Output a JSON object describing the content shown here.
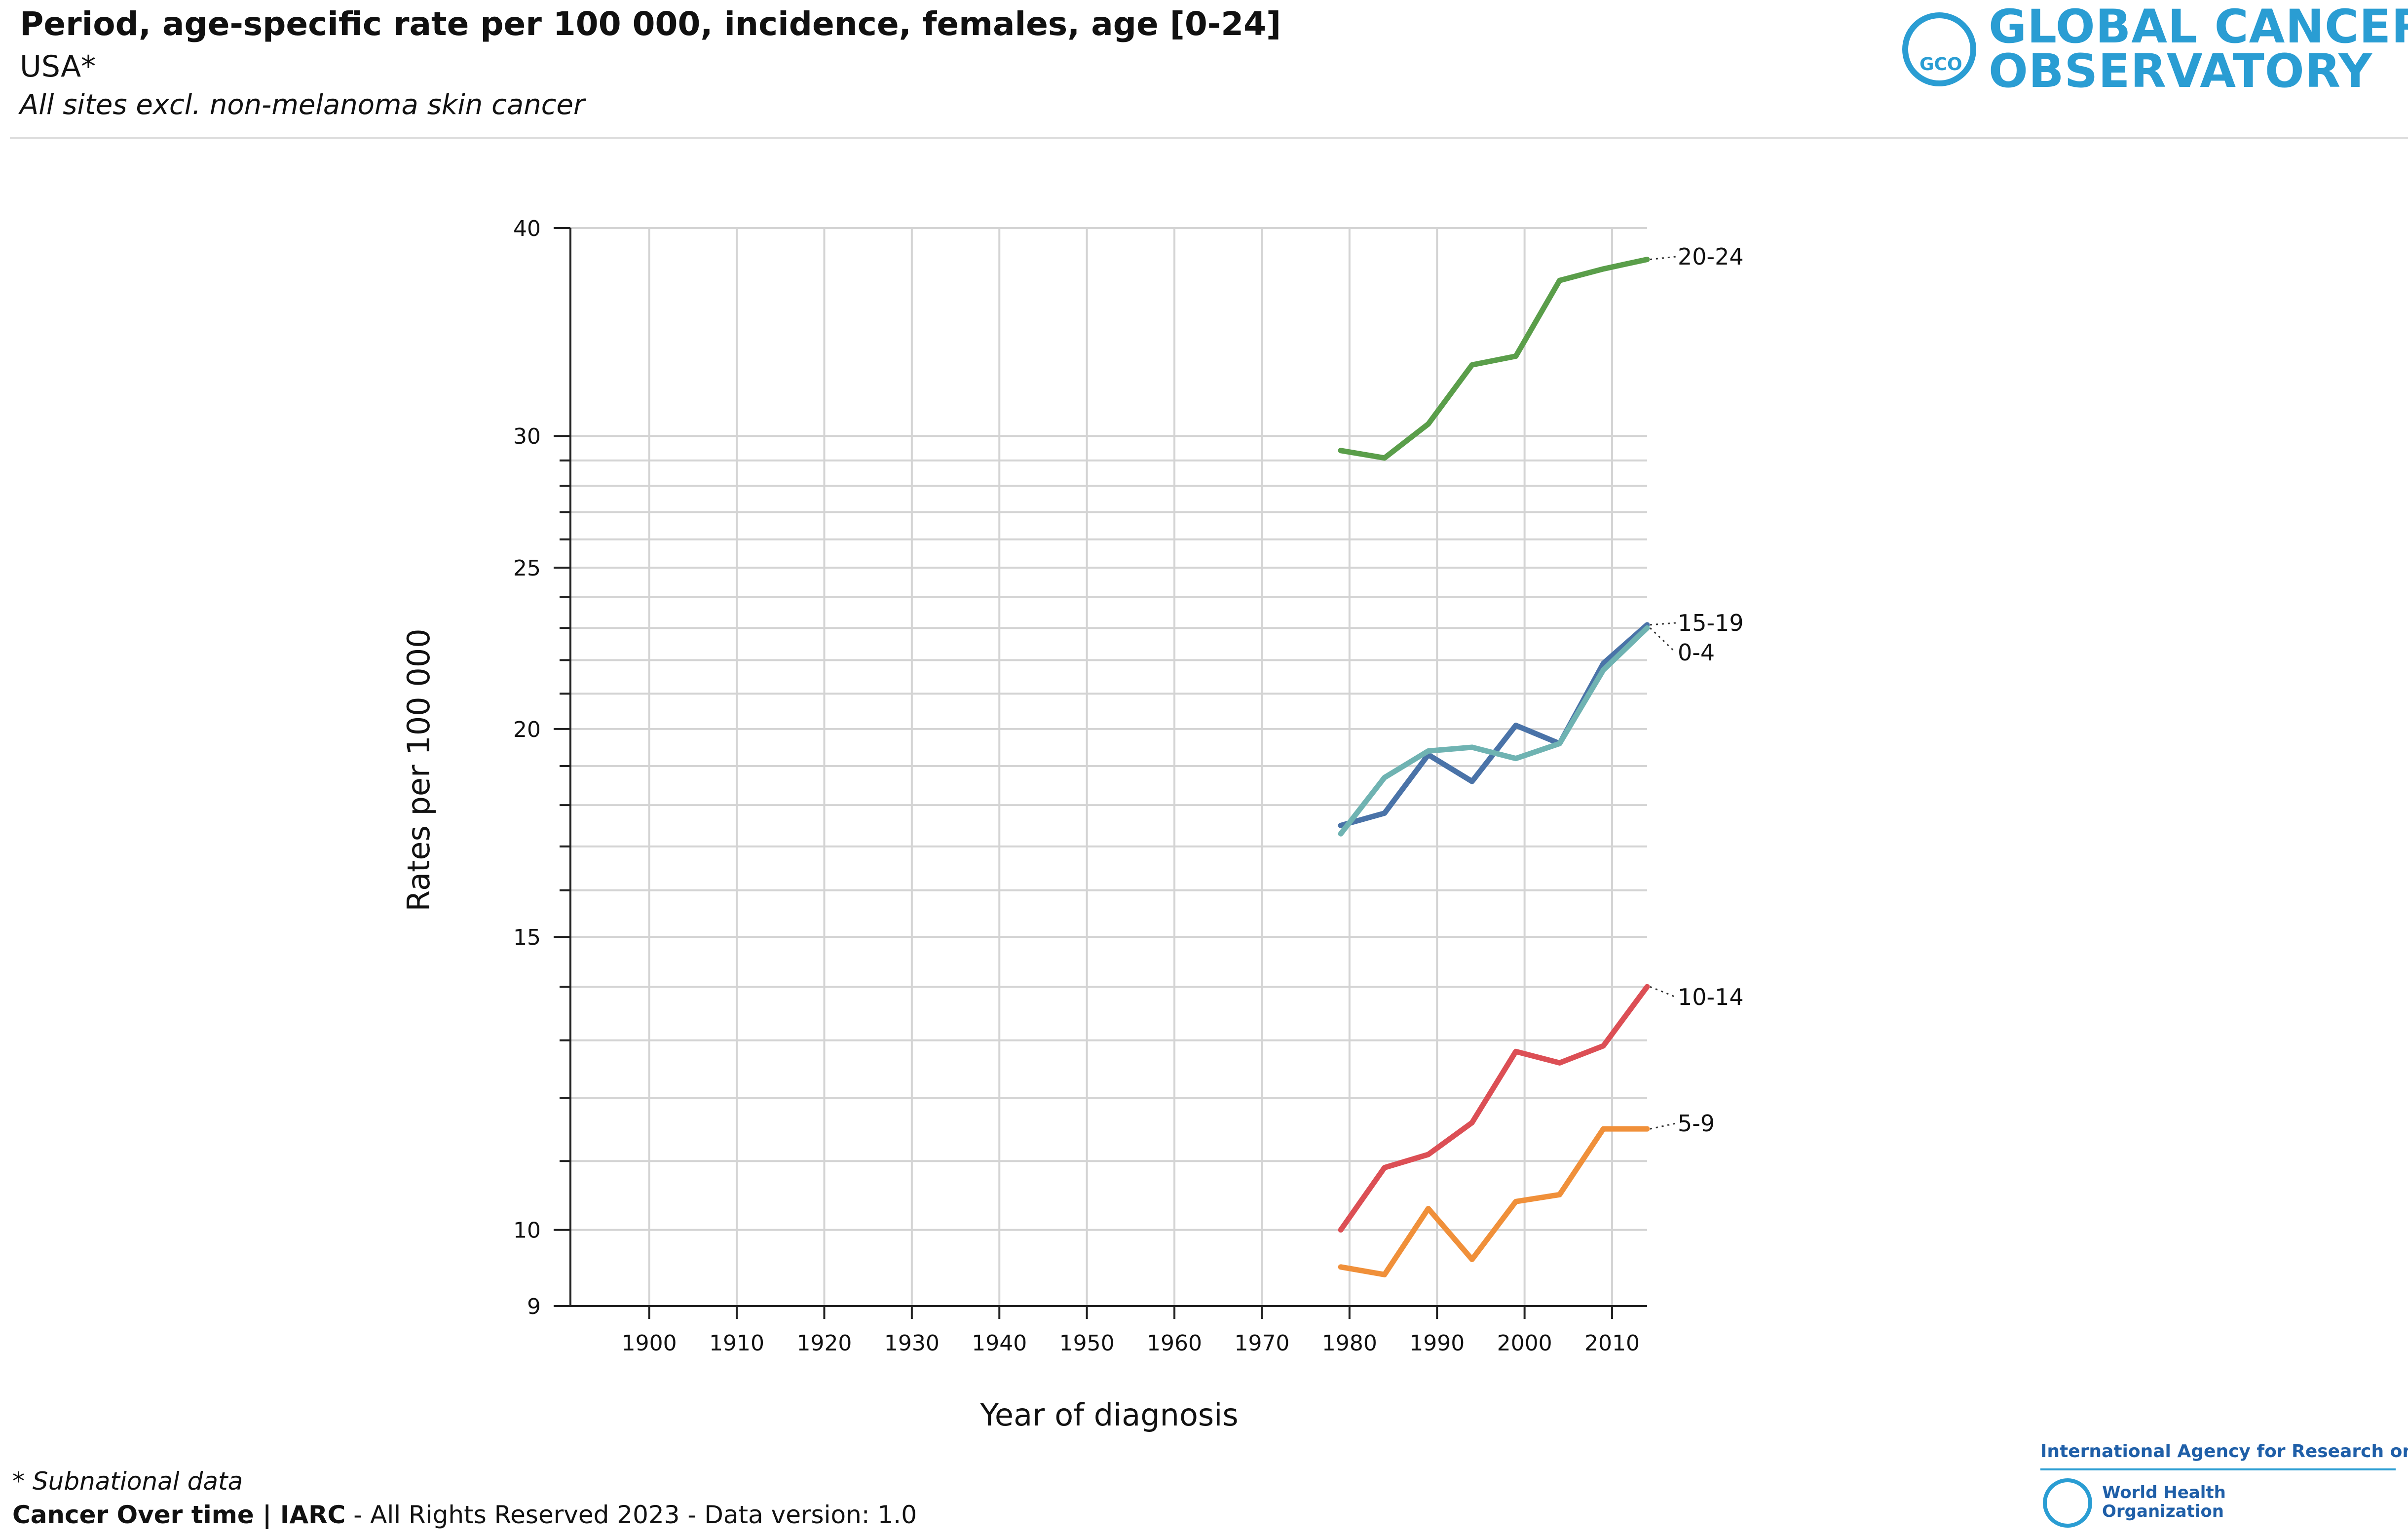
{
  "header": {
    "title": "Period, age-specific rate per 100 000, incidence, females, age [0-24]",
    "subtitle": "USA*",
    "sites": "All sites excl. non-melanoma skin cancer"
  },
  "logo": {
    "line1": "GLOBAL CANCER",
    "line2": "OBSERVATORY",
    "emblem": "GCO",
    "color": "#2a9dd3"
  },
  "footer": {
    "note": "* Subnational data",
    "brand": "Cancer Over time | IARC",
    "rest": " - All Rights Reserved 2023 - Data version: 1.0",
    "iarc": "International Agency for Research on Cancer",
    "who_line1": "World Health",
    "who_line2": "Organization"
  },
  "chart_data": {
    "type": "line",
    "xlabel": "Year of diagnosis",
    "ylabel": "Rates per 100 000",
    "yscale": "log",
    "ylim": [
      9,
      40
    ],
    "xlim": [
      1891,
      2014
    ],
    "xticks": [
      1900,
      1910,
      1920,
      1930,
      1940,
      1950,
      1960,
      1970,
      1980,
      1990,
      2000,
      2010
    ],
    "yticks": [
      9,
      10,
      15,
      20,
      25,
      30,
      40
    ],
    "grid": true,
    "series": [
      {
        "name": "20-24",
        "color": "#5a9e4a",
        "x": [
          1979,
          1984,
          1989,
          1994,
          1999,
          2004,
          2009,
          2014
        ],
        "y": [
          29.4,
          29.1,
          30.5,
          33.1,
          33.5,
          37.2,
          37.8,
          38.3
        ]
      },
      {
        "name": "15-19",
        "color": "#4a73a8",
        "x": [
          1979,
          1984,
          1989,
          1994,
          1999,
          2004,
          2009,
          2014
        ],
        "y": [
          17.5,
          17.8,
          19.3,
          18.6,
          20.1,
          19.6,
          21.9,
          23.1
        ]
      },
      {
        "name": "0-4",
        "color": "#6fb3b2",
        "x": [
          1979,
          1984,
          1989,
          1994,
          1999,
          2004,
          2009,
          2014
        ],
        "y": [
          17.3,
          18.7,
          19.4,
          19.5,
          19.2,
          19.6,
          21.7,
          23.0
        ]
      },
      {
        "name": "10-14",
        "color": "#dc4f55",
        "x": [
          1979,
          1984,
          1989,
          1994,
          1999,
          2004,
          2009,
          2014
        ],
        "y": [
          10.0,
          10.9,
          11.1,
          11.6,
          12.8,
          12.6,
          12.9,
          14.0
        ]
      },
      {
        "name": "5-9",
        "color": "#f0903a",
        "x": [
          1979,
          1984,
          1989,
          1994,
          1999,
          2004,
          2009,
          2014
        ],
        "y": [
          9.5,
          9.4,
          10.3,
          9.6,
          10.4,
          10.5,
          11.5,
          11.5
        ]
      }
    ]
  }
}
